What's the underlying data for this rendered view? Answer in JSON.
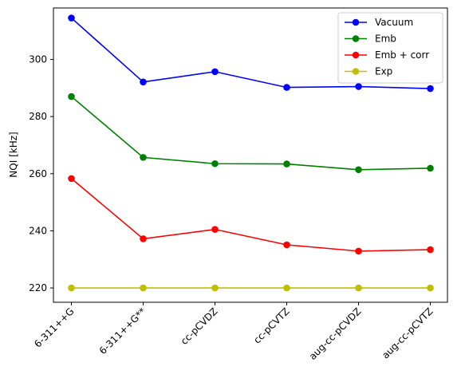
{
  "chart_data": {
    "type": "line",
    "title": "",
    "xlabel": "",
    "ylabel": "NQI [kHz]",
    "categories": [
      "6-311++G",
      "6-311++G**",
      "cc-pCVDZ",
      "cc-pCVTZ",
      "aug-cc-pCVDZ",
      "aug-cc-pCVTZ"
    ],
    "ylim": [
      215,
      318
    ],
    "yticks": [
      220,
      240,
      260,
      280,
      300
    ],
    "grid": false,
    "legend_position": "top-right",
    "series": [
      {
        "name": "Vacuum",
        "color": "#0000ff",
        "values": [
          314.5,
          292.1,
          295.7,
          290.2,
          290.5,
          289.8
        ]
      },
      {
        "name": "Emb",
        "color": "#008000",
        "values": [
          287.0,
          265.7,
          263.5,
          263.4,
          261.4,
          261.9
        ]
      },
      {
        "name": "Emb + corr",
        "color": "#ff0000",
        "values": [
          258.3,
          237.2,
          240.5,
          235.1,
          232.9,
          233.4
        ]
      },
      {
        "name": "Exp",
        "color": "#bfbf00",
        "values": [
          220.0,
          220.0,
          220.0,
          220.0,
          220.0,
          220.0
        ]
      }
    ]
  }
}
